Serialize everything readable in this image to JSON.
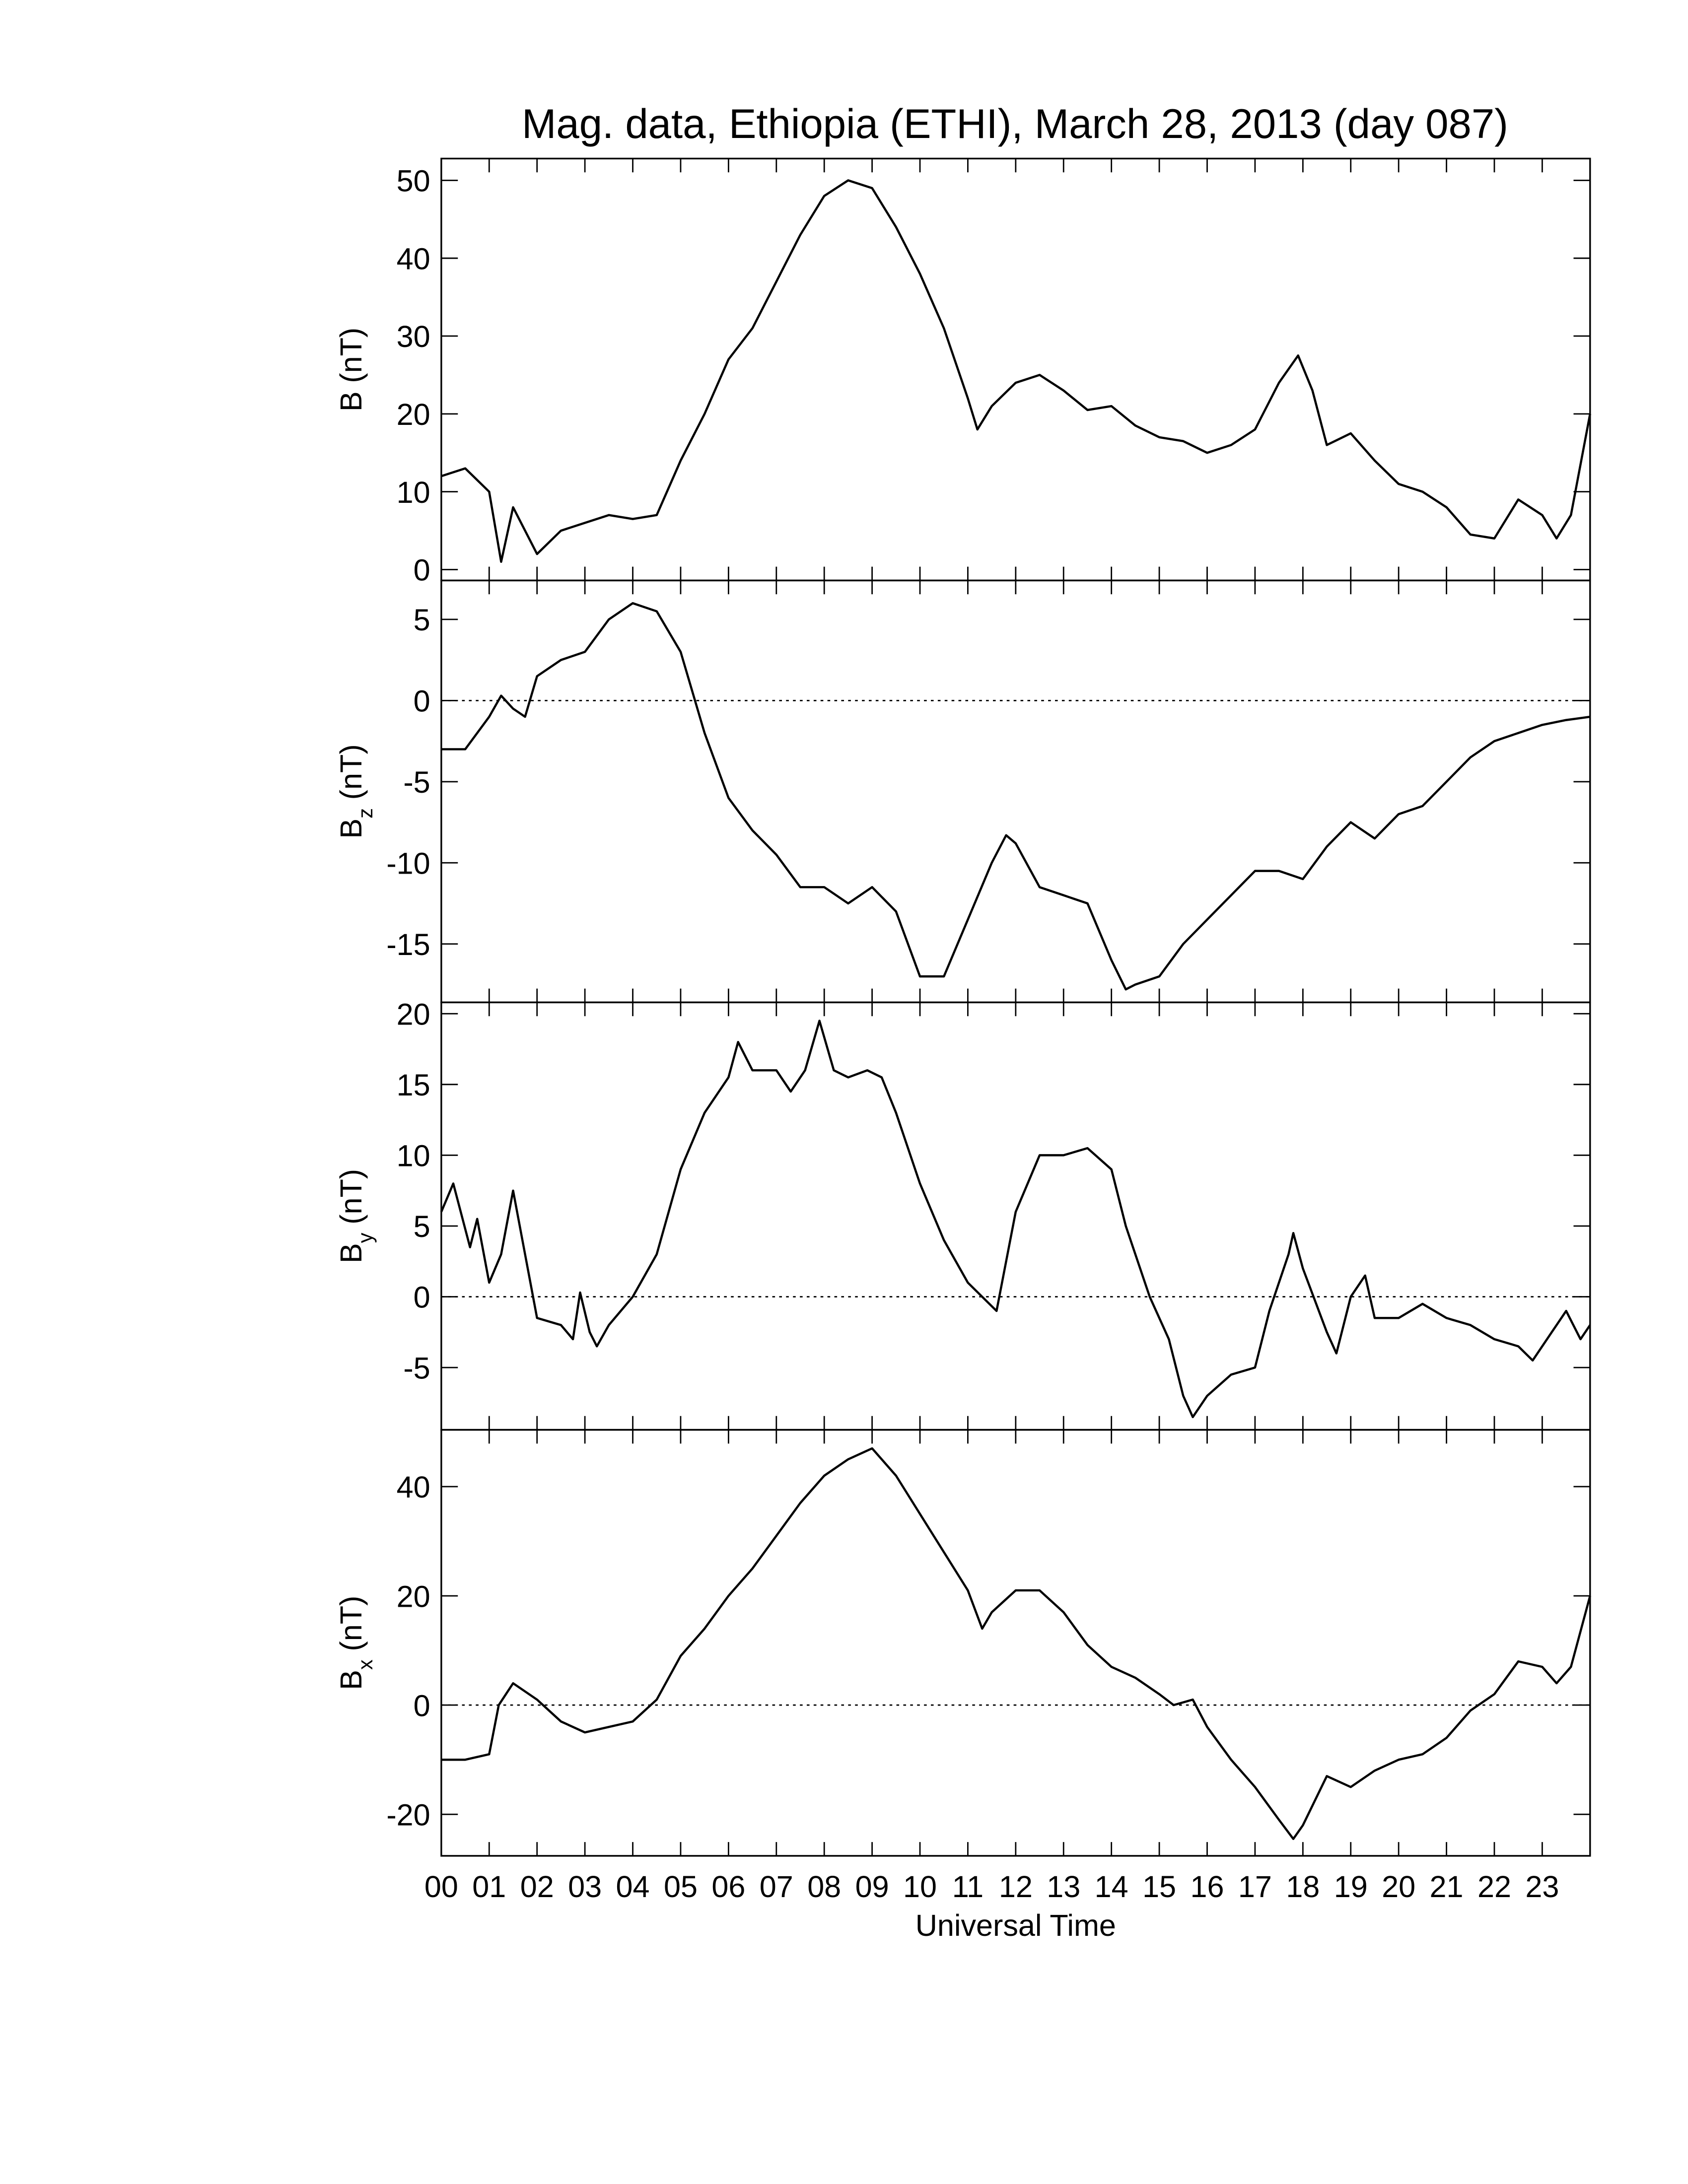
{
  "chart_data": [
    {
      "type": "line",
      "title": "Mag. data, Ethiopia (ETHI), March 28, 2013 (day 087)",
      "ylabel": "B",
      "ylabel_units": "(nT)",
      "color": "#000000",
      "xlim": [
        0,
        24
      ],
      "ylim": [
        -1.4,
        52.8
      ],
      "yticks": [
        0,
        10,
        20,
        30,
        40,
        50
      ],
      "x": [
        0,
        0.5,
        1,
        1.25,
        1.5,
        2,
        2.5,
        3,
        3.5,
        4,
        4.5,
        5,
        5.5,
        6,
        6.5,
        7,
        7.5,
        8,
        8.5,
        9,
        9.5,
        10,
        10.5,
        11,
        11.2,
        11.5,
        12,
        12.5,
        13,
        13.5,
        14,
        14.5,
        15,
        15.5,
        16,
        16.5,
        17,
        17.5,
        17.9,
        18.2,
        18.5,
        19,
        19.5,
        20,
        20.5,
        21,
        21.5,
        22,
        22.5,
        23,
        23.3,
        23.6,
        24
      ],
      "values": [
        12,
        13,
        10,
        1,
        8,
        2,
        5,
        6,
        7,
        6.5,
        7,
        14,
        20,
        27,
        31,
        37,
        43,
        48,
        50,
        49,
        44,
        38,
        31,
        22,
        18,
        21,
        24,
        25,
        23,
        20.5,
        21,
        18.5,
        17,
        16.5,
        15,
        16,
        18,
        24,
        27.5,
        23,
        16,
        17.5,
        14,
        11,
        10,
        8,
        4.5,
        4,
        9,
        7,
        4,
        7,
        20
      ]
    },
    {
      "type": "line",
      "ylabel": "B",
      "ylabel_subscript": "z",
      "ylabel_units": "(nT)",
      "color": "#000000",
      "zero_line": true,
      "xlim": [
        0,
        24
      ],
      "ylim": [
        -18.6,
        7.4
      ],
      "yticks": [
        5,
        0,
        -5,
        -10,
        -15
      ],
      "x": [
        0,
        0.5,
        1,
        1.25,
        1.5,
        1.75,
        2,
        2.5,
        3,
        3.5,
        4,
        4.5,
        5,
        5.5,
        6,
        6.5,
        7,
        7.5,
        8,
        8.5,
        9,
        9.5,
        10,
        10.5,
        11,
        11.5,
        11.8,
        12,
        12.5,
        13,
        13.5,
        14,
        14.3,
        14.5,
        15,
        15.5,
        16,
        16.5,
        17,
        17.5,
        18,
        18.5,
        19,
        19.5,
        20,
        20.5,
        21,
        21.5,
        22,
        22.5,
        23,
        23.5,
        24
      ],
      "values": [
        -3,
        -3,
        -1,
        0.3,
        -0.5,
        -1,
        1.5,
        2.5,
        3,
        5,
        6,
        5.5,
        3,
        -2,
        -6,
        -8,
        -9.5,
        -11.5,
        -11.5,
        -12.5,
        -11.5,
        -13,
        -17,
        -17,
        -13.5,
        -10,
        -8.3,
        -8.8,
        -11.5,
        -12,
        -12.5,
        -16,
        -17.8,
        -17.5,
        -17,
        -15,
        -13.5,
        -12,
        -10.5,
        -10.5,
        -11,
        -9,
        -7.5,
        -8.5,
        -7,
        -6.5,
        -5,
        -3.5,
        -2.5,
        -2,
        -1.5,
        -1.2,
        -1
      ]
    },
    {
      "type": "line",
      "ylabel": "B",
      "ylabel_subscript": "y",
      "ylabel_units": "(nT)",
      "color": "#000000",
      "zero_line": true,
      "xlim": [
        0,
        24
      ],
      "ylim": [
        -9.4,
        20.8
      ],
      "yticks": [
        20,
        15,
        10,
        5,
        0,
        -5
      ],
      "x": [
        0,
        0.25,
        0.6,
        0.75,
        1,
        1.25,
        1.5,
        1.75,
        2,
        2.5,
        2.75,
        2.9,
        3.1,
        3.25,
        3.5,
        4,
        4.5,
        5,
        5.5,
        6,
        6.2,
        6.5,
        7,
        7.3,
        7.6,
        7.9,
        8.2,
        8.5,
        8.9,
        9.2,
        9.5,
        10,
        10.5,
        11,
        11.3,
        11.6,
        12,
        12.5,
        13,
        13.5,
        14,
        14.3,
        14.8,
        15.2,
        15.5,
        15.7,
        16,
        16.5,
        17,
        17.3,
        17.7,
        17.8,
        18,
        18.5,
        18.7,
        19,
        19.3,
        19.5,
        20,
        20.5,
        21,
        21.5,
        22,
        22.5,
        22.8,
        23.2,
        23.5,
        23.8,
        24
      ],
      "values": [
        6,
        8,
        3.5,
        5.5,
        1,
        3,
        7.5,
        3,
        -1.5,
        -2,
        -3,
        0.3,
        -2.5,
        -3.5,
        -2,
        0,
        3,
        9,
        13,
        15.5,
        18,
        16,
        16,
        14.5,
        16,
        19.5,
        16,
        15.5,
        16,
        15.5,
        13,
        8,
        4,
        1,
        0,
        -1,
        6,
        10,
        10,
        10.5,
        9,
        5,
        0,
        -3,
        -7,
        -8.5,
        -7,
        -5.5,
        -5,
        -1,
        3,
        4.5,
        2,
        -2.5,
        -4,
        0,
        1.5,
        -1.5,
        -1.5,
        -0.5,
        -1.5,
        -2,
        -3,
        -3.5,
        -4.5,
        -2.5,
        -1,
        -3,
        -2
      ]
    },
    {
      "type": "line",
      "ylabel": "B",
      "ylabel_subscript": "x",
      "ylabel_units": "(nT)",
      "xlabel": "Universal Time",
      "color": "#000000",
      "zero_line": true,
      "xlim": [
        0,
        24
      ],
      "ylim": [
        -27.6,
        50.4
      ],
      "yticks": [
        40,
        20,
        0,
        -20
      ],
      "xticks": [
        {
          "value": 0,
          "label": "00"
        },
        {
          "value": 1,
          "label": "01"
        },
        {
          "value": 2,
          "label": "02"
        },
        {
          "value": 3,
          "label": "03"
        },
        {
          "value": 4,
          "label": "04"
        },
        {
          "value": 5,
          "label": "05"
        },
        {
          "value": 6,
          "label": "06"
        },
        {
          "value": 7,
          "label": "07"
        },
        {
          "value": 8,
          "label": "08"
        },
        {
          "value": 9,
          "label": "09"
        },
        {
          "value": 10,
          "label": "10"
        },
        {
          "value": 11,
          "label": "11"
        },
        {
          "value": 12,
          "label": "12"
        },
        {
          "value": 13,
          "label": "13"
        },
        {
          "value": 14,
          "label": "14"
        },
        {
          "value": 15,
          "label": "15"
        },
        {
          "value": 16,
          "label": "16"
        },
        {
          "value": 17,
          "label": "17"
        },
        {
          "value": 18,
          "label": "18"
        },
        {
          "value": 19,
          "label": "19"
        },
        {
          "value": 20,
          "label": "20"
        },
        {
          "value": 21,
          "label": "21"
        },
        {
          "value": 22,
          "label": "22"
        },
        {
          "value": 23,
          "label": "23"
        }
      ],
      "x": [
        0,
        0.5,
        1,
        1.2,
        1.5,
        2,
        2.5,
        3,
        3.5,
        4,
        4.5,
        5,
        5.5,
        6,
        6.5,
        7,
        7.5,
        8,
        8.5,
        9,
        9.5,
        10,
        10.5,
        11,
        11.3,
        11.5,
        12,
        12.5,
        13,
        13.5,
        14,
        14.5,
        15,
        15.3,
        15.7,
        16,
        16.5,
        17,
        17.5,
        17.8,
        18,
        18.5,
        19,
        19.5,
        20,
        20.5,
        21,
        21.5,
        22,
        22.5,
        23,
        23.3,
        23.6,
        24
      ],
      "values": [
        -10,
        -10,
        -9,
        0,
        4,
        1,
        -3,
        -5,
        -4,
        -3,
        1,
        9,
        14,
        20,
        25,
        31,
        37,
        42,
        45,
        47,
        42,
        35,
        28,
        21,
        14,
        17,
        21,
        21,
        17,
        11,
        7,
        5,
        2,
        0,
        1,
        -4,
        -10,
        -15,
        -21,
        -24.5,
        -22,
        -13,
        -15,
        -12,
        -10,
        -9,
        -6,
        -1,
        2,
        8,
        7,
        4,
        7,
        20
      ]
    }
  ]
}
